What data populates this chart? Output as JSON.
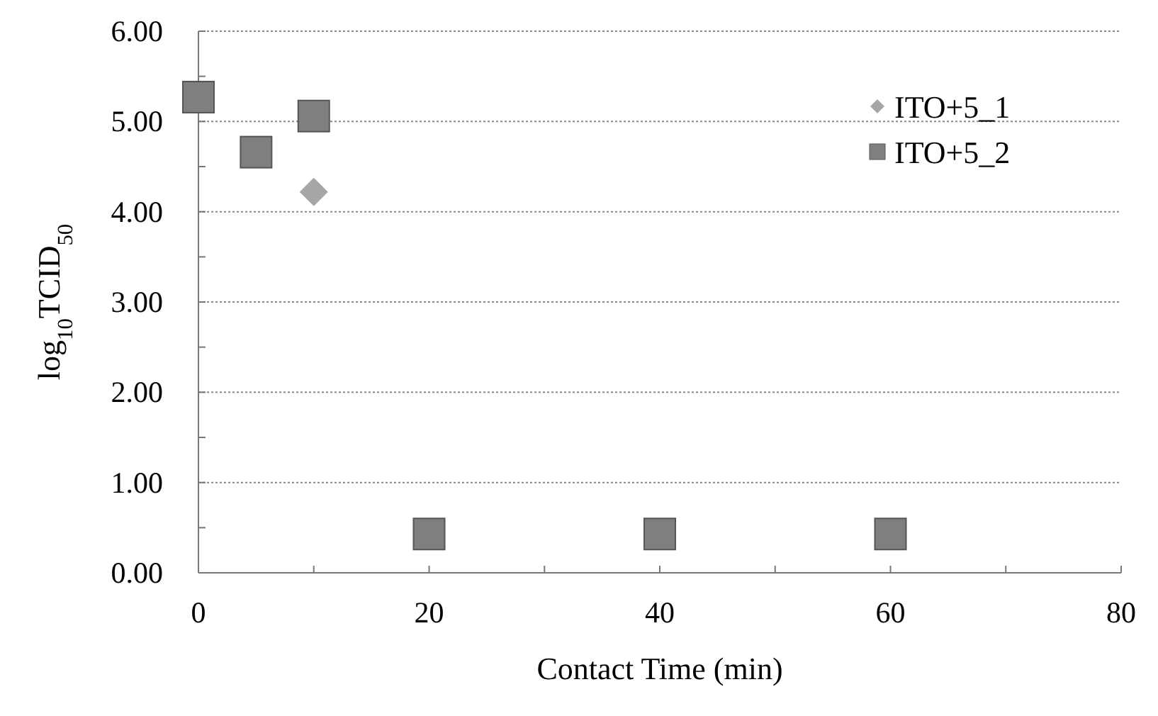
{
  "chart_data": {
    "type": "scatter",
    "xlabel": "Contact Time (min)",
    "ylabel": "log$_{10}$TCID$_{50}$",
    "xlim": [
      0,
      80
    ],
    "xticks": [
      0,
      {
        "value": 10,
        "label": null
      },
      20,
      {
        "value": 30,
        "label": null
      },
      40,
      {
        "value": 50,
        "label": null
      },
      60,
      {
        "value": 70,
        "label": null
      },
      80
    ],
    "ylim": [
      0,
      6
    ],
    "yticks": [
      {
        "value": 0,
        "label": "0.00"
      },
      {
        "value": 0.5,
        "label": null
      },
      {
        "value": 1,
        "label": "1.00"
      },
      {
        "value": 1.5,
        "label": null
      },
      {
        "value": 2,
        "label": "2.00"
      },
      {
        "value": 2.5,
        "label": null
      },
      {
        "value": 3,
        "label": "3.00"
      },
      {
        "value": 3.5,
        "label": null
      },
      {
        "value": 4,
        "label": "4.00"
      },
      {
        "value": 4.5,
        "label": null
      },
      {
        "value": 5,
        "label": "5.00"
      },
      {
        "value": 5.5,
        "label": null
      },
      {
        "value": 6,
        "label": "6.00"
      }
    ],
    "grid": "y",
    "legend": "top right",
    "series": [
      {
        "name": "ITO+5_1",
        "color": "#a6a6a6",
        "marker": "diamond",
        "x": [
          10
        ],
        "values": [
          4.22
        ]
      },
      {
        "name": "ITO+5_2",
        "color": "#7f7f7f",
        "marker": "square",
        "x": [
          0,
          5,
          10,
          20,
          40,
          60
        ],
        "values": [
          5.27,
          4.66,
          5.06,
          0.43,
          0.43,
          0.43
        ]
      }
    ]
  }
}
